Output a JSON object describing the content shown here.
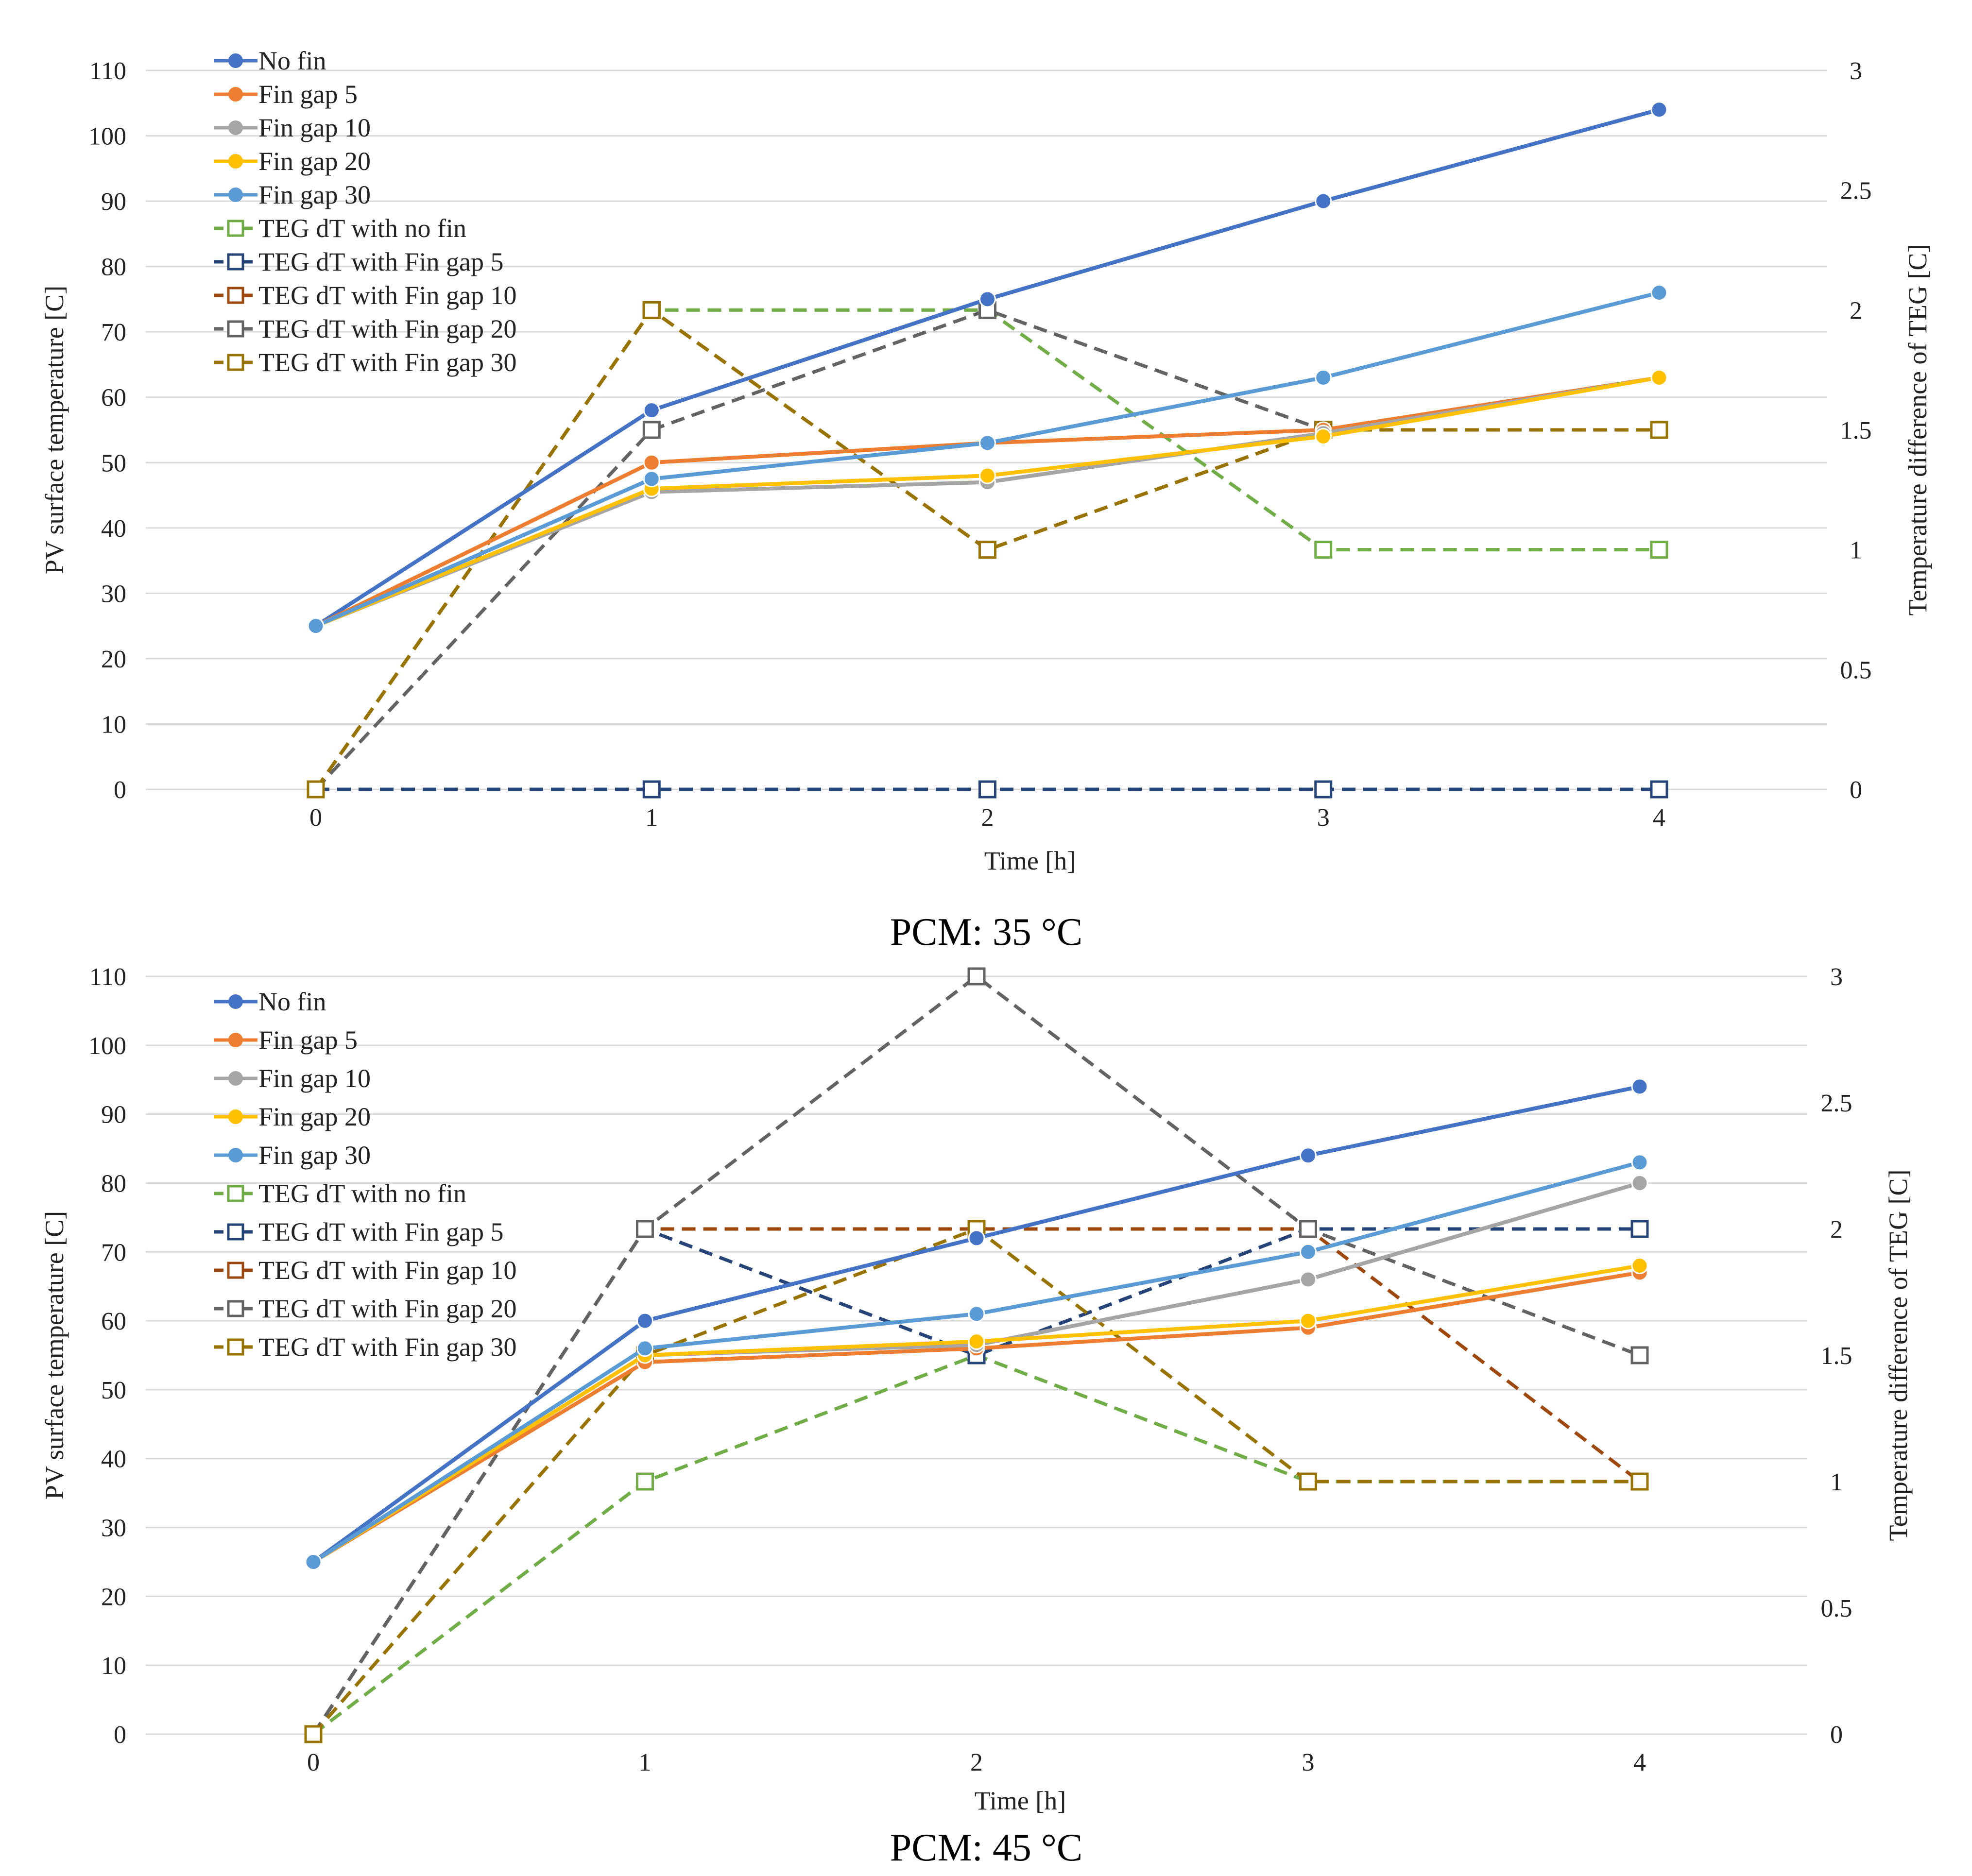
{
  "chart_data": [
    {
      "type": "line",
      "caption": "PCM: 35 °C",
      "xlabel": "Time [h]",
      "ylabel": "PV surface temperature [C]",
      "y2label": "Temperature difference of TEG [C]",
      "x": [
        0,
        1,
        2,
        3,
        4
      ],
      "ylim": [
        0,
        110
      ],
      "yticks": [
        0,
        10,
        20,
        30,
        40,
        50,
        60,
        70,
        80,
        90,
        100,
        110
      ],
      "y2lim": [
        0,
        3
      ],
      "y2ticks": [
        "0",
        "0.5",
        "1",
        "1.5",
        "2",
        "2.5",
        "3"
      ],
      "legend_position": "top-left",
      "series": [
        {
          "name": "No fin",
          "axis": "left",
          "style": "solid",
          "marker": "circle",
          "color": "#4472C4",
          "values": [
            25,
            58,
            75,
            90,
            104
          ]
        },
        {
          "name": "Fin gap 5",
          "axis": "left",
          "style": "solid",
          "marker": "circle",
          "color": "#ED7D31",
          "values": [
            25,
            50,
            53,
            55,
            63
          ]
        },
        {
          "name": "Fin gap 10",
          "axis": "left",
          "style": "solid",
          "marker": "circle",
          "color": "#A5A5A5",
          "values": [
            25,
            45.5,
            47,
            54.5,
            63
          ]
        },
        {
          "name": "Fin gap 20",
          "axis": "left",
          "style": "solid",
          "marker": "circle",
          "color": "#FFC000",
          "values": [
            25,
            46,
            48,
            54,
            63
          ]
        },
        {
          "name": "Fin gap 30",
          "axis": "left",
          "style": "solid",
          "marker": "circle",
          "color": "#5B9BD5",
          "values": [
            25,
            47.5,
            53,
            63,
            76
          ]
        },
        {
          "name": "TEG dT with no fin",
          "axis": "right",
          "style": "dashed",
          "marker": "square",
          "color": "#70AD47",
          "values": [
            0,
            2,
            2,
            1,
            1
          ]
        },
        {
          "name": "TEG dT with Fin gap 5",
          "axis": "right",
          "style": "dashed",
          "marker": "square",
          "color": "#264478",
          "values": [
            0,
            0,
            0,
            0,
            0
          ]
        },
        {
          "name": "TEG dT with Fin gap 10",
          "axis": "right",
          "style": "dashed",
          "marker": "square",
          "color": "#9E480E",
          "values": [
            0,
            2,
            1,
            1.5,
            1.5
          ]
        },
        {
          "name": "TEG dT with Fin gap 20",
          "axis": "right",
          "style": "dashed",
          "marker": "square",
          "color": "#636363",
          "values": [
            0,
            1.5,
            2,
            1.5,
            1.5
          ]
        },
        {
          "name": "TEG dT with Fin gap 30",
          "axis": "right",
          "style": "dashed",
          "marker": "square",
          "color": "#997300",
          "values": [
            0,
            2,
            1,
            1.5,
            1.5
          ]
        }
      ]
    },
    {
      "type": "line",
      "caption": "PCM: 45 °C",
      "xlabel": "Time [h]",
      "ylabel": "PV surface temperature [C]",
      "y2label": "Temperature difference of TEG [C]",
      "x": [
        0,
        1,
        2,
        3,
        4
      ],
      "ylim": [
        0,
        110
      ],
      "yticks": [
        0,
        10,
        20,
        30,
        40,
        50,
        60,
        70,
        80,
        90,
        100,
        110
      ],
      "y2lim": [
        0,
        3
      ],
      "y2ticks": [
        "0",
        "0.5",
        "1",
        "1.5",
        "2",
        "2.5",
        "3"
      ],
      "legend_position": "top-left",
      "series": [
        {
          "name": "No fin",
          "axis": "left",
          "style": "solid",
          "marker": "circle",
          "color": "#4472C4",
          "values": [
            25,
            60,
            72,
            84,
            94
          ]
        },
        {
          "name": "Fin gap 5",
          "axis": "left",
          "style": "solid",
          "marker": "circle",
          "color": "#ED7D31",
          "values": [
            25,
            54,
            56,
            59,
            67
          ]
        },
        {
          "name": "Fin gap 10",
          "axis": "left",
          "style": "solid",
          "marker": "circle",
          "color": "#A5A5A5",
          "values": [
            25,
            55,
            56.5,
            66,
            80
          ]
        },
        {
          "name": "Fin gap 20",
          "axis": "left",
          "style": "solid",
          "marker": "circle",
          "color": "#FFC000",
          "values": [
            25,
            55,
            57,
            60,
            68
          ]
        },
        {
          "name": "Fin gap 30",
          "axis": "left",
          "style": "solid",
          "marker": "circle",
          "color": "#5B9BD5",
          "values": [
            25,
            56,
            61,
            70,
            83
          ]
        },
        {
          "name": "TEG dT with no fin",
          "axis": "right",
          "style": "dashed",
          "marker": "square",
          "color": "#70AD47",
          "values": [
            0,
            1,
            1.5,
            1,
            1
          ]
        },
        {
          "name": "TEG dT with Fin gap 5",
          "axis": "right",
          "style": "dashed",
          "marker": "square",
          "color": "#264478",
          "values": [
            0,
            2,
            1.5,
            2,
            2
          ]
        },
        {
          "name": "TEG dT with Fin gap 10",
          "axis": "right",
          "style": "dashed",
          "marker": "square",
          "color": "#9E480E",
          "values": [
            0,
            2,
            2,
            2,
            1
          ]
        },
        {
          "name": "TEG dT with Fin gap 20",
          "axis": "right",
          "style": "dashed",
          "marker": "square",
          "color": "#636363",
          "values": [
            0,
            2,
            3,
            2,
            1.5
          ]
        },
        {
          "name": "TEG dT with Fin gap 30",
          "axis": "right",
          "style": "dashed",
          "marker": "square",
          "color": "#997300",
          "values": [
            0,
            1.5,
            2,
            1,
            1
          ]
        }
      ]
    }
  ]
}
